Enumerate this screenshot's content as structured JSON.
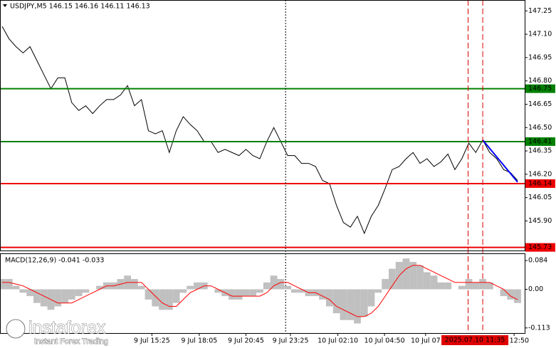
{
  "chart_data": [
    {
      "type": "line",
      "title": "USDJPY,M5  146.15 146.16 146.11 146.13",
      "color": "#000000",
      "values": [
        147.15,
        147.07,
        147.02,
        146.98,
        147.02,
        146.93,
        146.84,
        146.75,
        146.82,
        146.82,
        146.66,
        146.61,
        146.64,
        146.59,
        146.64,
        146.68,
        146.68,
        146.71,
        146.77,
        146.64,
        146.68,
        146.48,
        146.46,
        146.48,
        146.34,
        146.48,
        146.57,
        146.52,
        146.48,
        146.41,
        146.41,
        146.34,
        146.36,
        146.34,
        146.32,
        146.36,
        146.32,
        146.3,
        146.41,
        146.5,
        146.41,
        146.32,
        146.32,
        146.27,
        146.27,
        146.25,
        146.16,
        146.14,
        146.0,
        145.89,
        145.86,
        145.93,
        145.82,
        145.93,
        146.0,
        146.11,
        146.23,
        146.25,
        146.3,
        146.34,
        146.27,
        146.3,
        146.25,
        146.28,
        146.33,
        146.23,
        146.3,
        146.4,
        146.34,
        146.42,
        146.34,
        146.3,
        146.23,
        146.21,
        146.16
      ],
      "xlim": [
        0,
        74
      ],
      "ylim": [
        145.71,
        147.32
      ],
      "yticks": [
        147.25,
        {
          "value": 147.1,
          "label": "147.10"
        },
        146.95,
        {
          "value": 146.8,
          "label": "146.80"
        },
        146.65,
        {
          "value": 146.5,
          "label": "146.50"
        },
        146.35,
        {
          "value": 146.2,
          "label": "146.20"
        },
        146.05,
        {
          "value": 145.9,
          "label": "145.90"
        }
      ],
      "xticks": [
        {
          "value": 21.5,
          "label": "9 Jul 15:25"
        },
        {
          "value": 28.3,
          "label": "9 Jul 18:05"
        },
        {
          "value": 35,
          "label": "9 Jul 20:45"
        },
        {
          "value": 41.4,
          "label": "9 Jul 23:25"
        },
        {
          "value": 48.2,
          "label": "10 Jul 02:10"
        },
        {
          "value": 54.9,
          "label": "10 Jul 04:50"
        },
        {
          "value": 60.8,
          "label": "10 Jul 07"
        },
        {
          "value": 73.5,
          "label": "Jul 12:50"
        }
      ],
      "cursor": {
        "value": 69,
        "label": "2025.07.10 11:35"
      },
      "hlines": [
        {
          "value": 146.75,
          "color": "#008000"
        },
        {
          "value": 146.41,
          "color": "#008000"
        },
        {
          "value": 146.14,
          "color": "#ee0000"
        },
        {
          "value": 145.73,
          "color": "#ee0000"
        }
      ],
      "vlines": [
        {
          "value": 40.7,
          "color": "#000000"
        },
        {
          "value": 66.9,
          "color": "#dd0000"
        },
        {
          "value": 69,
          "color": "#dd0000"
        }
      ],
      "trendline": {
        "x": [
          69,
          74
        ],
        "values": [
          146.42,
          146.15
        ],
        "color": "#0000ff"
      }
    },
    {
      "type": "macd",
      "title": "MACD(12,26,9) -0.041 -0.033",
      "xlim": [
        0,
        74
      ],
      "ylim": [
        -0.128,
        0.103
      ],
      "yticks": [
        0.084,
        {
          "value": 0,
          "label": "0.00"
        },
        -0.113
      ],
      "histogram": {
        "color": "#c0c0c0",
        "values": [
          0.03,
          0.03,
          0.01,
          -0.01,
          -0.02,
          -0.04,
          -0.05,
          -0.06,
          -0.05,
          -0.04,
          -0.03,
          -0.02,
          -0.01,
          0.0,
          0.01,
          0.02,
          0.02,
          0.03,
          0.04,
          0.03,
          0.01,
          -0.03,
          -0.05,
          -0.06,
          -0.06,
          -0.04,
          -0.01,
          0.01,
          0.02,
          0.02,
          0.0,
          -0.01,
          -0.02,
          -0.03,
          -0.03,
          -0.02,
          -0.02,
          -0.01,
          0.02,
          0.04,
          0.03,
          0.01,
          -0.01,
          -0.01,
          -0.02,
          -0.02,
          -0.03,
          -0.05,
          -0.07,
          -0.09,
          -0.09,
          -0.1,
          -0.08,
          -0.05,
          -0.01,
          0.03,
          0.06,
          0.08,
          0.09,
          0.08,
          0.07,
          0.05,
          0.04,
          0.02,
          0.02,
          0.0,
          0.01,
          0.03,
          0.02,
          0.03,
          0.02,
          0.0,
          -0.02,
          -0.03,
          -0.04
        ]
      },
      "signal": {
        "color": "#ff0000",
        "values": [
          0.02,
          0.02,
          0.015,
          0.01,
          0.0,
          -0.01,
          -0.02,
          -0.03,
          -0.04,
          -0.04,
          -0.04,
          -0.03,
          -0.02,
          -0.01,
          0.0,
          0.01,
          0.01,
          0.015,
          0.02,
          0.02,
          0.02,
          0.0,
          -0.02,
          -0.04,
          -0.05,
          -0.05,
          -0.03,
          -0.01,
          0.0,
          0.01,
          0.01,
          0.0,
          -0.01,
          -0.02,
          -0.02,
          -0.02,
          -0.02,
          -0.02,
          -0.01,
          0.01,
          0.02,
          0.02,
          0.01,
          0.0,
          -0.01,
          -0.01,
          -0.02,
          -0.03,
          -0.05,
          -0.06,
          -0.07,
          -0.08,
          -0.08,
          -0.07,
          -0.05,
          -0.02,
          0.01,
          0.04,
          0.06,
          0.07,
          0.07,
          0.06,
          0.05,
          0.04,
          0.03,
          0.02,
          0.02,
          0.02,
          0.02,
          0.02,
          0.02,
          0.01,
          0.0,
          -0.02,
          -0.03
        ]
      }
    }
  ],
  "watermark": {
    "brand": "instaforex",
    "tagline": "Instant Forex Trading"
  }
}
